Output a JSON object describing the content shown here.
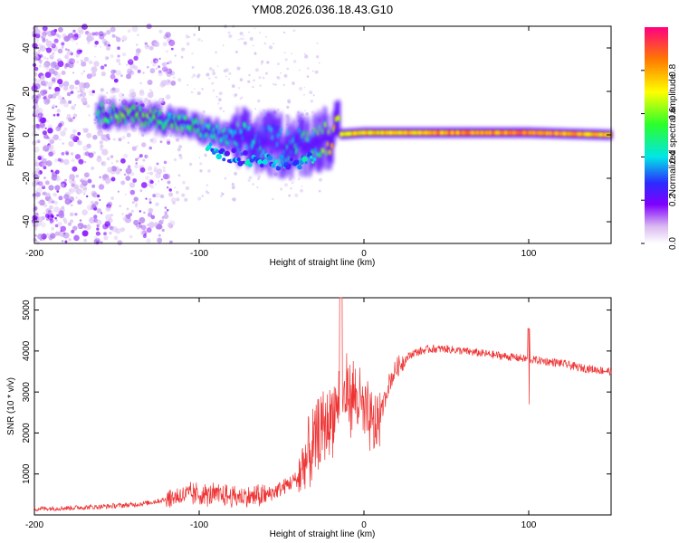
{
  "title": "YM08.2026.036.18.43.G10",
  "chart_data": [
    {
      "type": "heatmap",
      "name": "spectrogram",
      "xlabel": "Height of straight line (km)",
      "ylabel": "Frequency (Hz)",
      "xlim": [
        -200,
        150
      ],
      "ylim": [
        -50,
        50
      ],
      "xticks": [
        -200,
        -100,
        0,
        100
      ],
      "xtick_labels": [
        "-200",
        "-100",
        "0",
        "100"
      ],
      "yticks": [
        -40,
        -20,
        0,
        20,
        40
      ],
      "ytick_labels": [
        "-40",
        "-20",
        "0",
        "20",
        "40"
      ],
      "ridge_frequency": {
        "x": [
          -160,
          -140,
          -120,
          -100,
          -80,
          -60,
          -40,
          -30,
          -20,
          0,
          50,
          100,
          150
        ],
        "freq": [
          10,
          9,
          7,
          3,
          -2,
          -4,
          -5,
          -3,
          0,
          1,
          1,
          1,
          0
        ],
        "amplitude": [
          0.5,
          0.55,
          0.5,
          0.45,
          0.4,
          0.35,
          0.4,
          0.45,
          0.7,
          0.75,
          0.8,
          0.85,
          0.8
        ]
      },
      "colorbar": {
        "label": "Normalized spectral amplitude",
        "range": [
          0,
          1
        ],
        "ticks": [
          0.0,
          0.2,
          0.4,
          0.6,
          0.8
        ],
        "tick_labels": [
          "0.0",
          "0.2",
          "0.4",
          "0.6",
          "0.8"
        ]
      }
    },
    {
      "type": "line",
      "name": "snr",
      "xlabel": "Height of straight line (km)",
      "ylabel": "SNR (10 * v/v)",
      "xlim": [
        -200,
        150
      ],
      "ylim": [
        0,
        5300
      ],
      "xticks": [
        -200,
        -100,
        0,
        100
      ],
      "xtick_labels": [
        "-200",
        "-100",
        "0",
        "100"
      ],
      "yticks": [
        1000,
        2000,
        3000,
        4000,
        5000
      ],
      "ytick_labels": [
        "1000",
        "2000",
        "3000",
        "4000",
        "5000"
      ],
      "series": [
        {
          "name": "SNR",
          "color": "#ee3333",
          "x": [
            -200,
            -180,
            -160,
            -140,
            -130,
            -120,
            -110,
            -100,
            -90,
            -80,
            -70,
            -60,
            -50,
            -40,
            -35,
            -30,
            -25,
            -20,
            -15,
            -10,
            -5,
            0,
            5,
            10,
            15,
            20,
            25,
            30,
            40,
            50,
            60,
            70,
            80,
            90,
            100,
            110,
            120,
            130,
            140,
            150
          ],
          "y": [
            150,
            170,
            200,
            250,
            300,
            380,
            480,
            500,
            480,
            450,
            440,
            460,
            650,
            900,
            1300,
            1700,
            2100,
            2400,
            2800,
            3000,
            2900,
            2500,
            2100,
            2400,
            3200,
            3600,
            3800,
            3950,
            4050,
            4050,
            4000,
            3950,
            3900,
            3850,
            3800,
            3750,
            3700,
            3600,
            3550,
            3500
          ]
        }
      ]
    }
  ]
}
